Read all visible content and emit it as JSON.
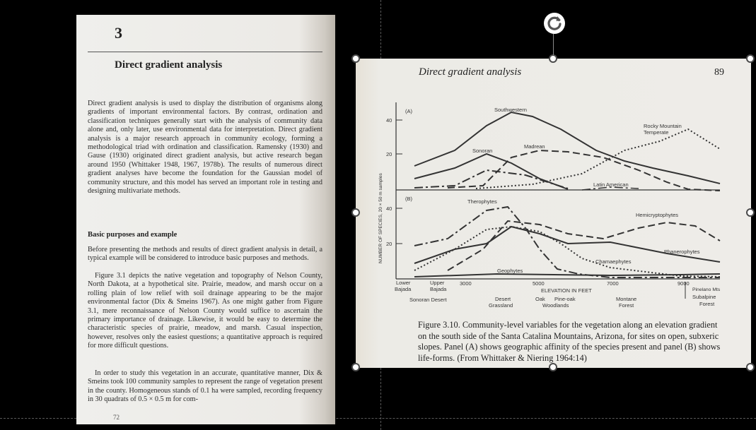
{
  "left_page": {
    "chapter_number": "3",
    "chapter_title": "Direct gradient analysis",
    "intro_paragraph": "Direct gradient analysis is used to display the distribution of organisms along gradients of important environmental factors. By contrast, ordination and classification techniques generally start with the analysis of community data alone and, only later, use environmental data for interpretation. Direct gradient analysis is a major research approach in community ecology, forming a methodological triad with ordination and classification. Ramensky (1930) and Gause (1930) originated direct gradient analysis, but active research began around 1950 (Whittaker 1948, 1967, 1978b). The results of numerous direct gradient analyses have become the foundation for the Gaussian model of community structure, and this model has served an important role in testing and designing multivariate methods.",
    "section_heading": "Basic purposes and example",
    "para_2": "Before presenting the methods and results of direct gradient analysis in detail, a typical example will be considered to introduce basic purposes and methods.",
    "para_3": "Figure 3.1 depicts the native vegetation and topography of Nelson County, North Dakota, at a hypothetical site. Prairie, meadow, and marsh occur on a rolling plain of low relief with soil drainage appearing to be the major environmental factor (Dix & Smeins 1967). As one might gather from Figure 3.1, mere reconnaissance of Nelson County would suffice to ascertain the primary importance of drainage. Likewise, it would be easy to determine the characteristic species of prairie, meadow, and marsh. Casual inspection, however, resolves only the easiest questions; a quantitative approach is required for more difficult questions.",
    "para_4": "In order to study this vegetation in an accurate, quantitative manner, Dix & Smeins took 100 community samples to represent the range of vegetation present in the county. Homogeneous stands of 0.1 ha were sampled, recording frequency in 30 quadrats of 0.5 × 0.5 m for com-",
    "folio": "72"
  },
  "right_page": {
    "running_head": "Direct gradient analysis",
    "page_number": "89",
    "caption": "Figure 3.10. Community-level variables for the vegetation along an elevation gradient on the south side of the Santa Catalina Mountains, Arizona, for sites on open, subxeric slopes. Panel (A) shows geographic affinity of the species present and panel (B) shows life-forms. (From Whittaker & Niering 1964:14)",
    "figure": {
      "y_axis_label": "NUMBER OF SPECIES, 20 × 50 m samples",
      "panel_a_label": "(A)",
      "panel_b_label": "(B)",
      "a_ticks": [
        "40",
        "20"
      ],
      "b_ticks": [
        "40",
        "20"
      ],
      "a_series_labels": [
        "Southwestern",
        "Sonoran",
        "Madrean",
        "Rocky Mountain",
        "Temperate",
        "Latin American"
      ],
      "b_series_labels": [
        "Therophytes",
        "Hemicryptophytes",
        "Phanerophytes",
        "Chamaephytes",
        "Geophytes"
      ],
      "x_ticks": [
        "3000",
        "5000",
        "7000",
        "9000"
      ],
      "x_axis_title": "ELEVATION IN FEET",
      "zone_labels_top": [
        "Lower",
        "Bajada",
        "Upper",
        "Bajada"
      ],
      "vegetation_labels": [
        "Sonoran Desert",
        "Desert",
        "Grassland",
        "Oak",
        "Woodlands",
        "Pine-oak",
        "Montane",
        "Forest",
        "Pinelano Mts",
        "Subalpine",
        "Forest"
      ]
    }
  },
  "toolbar": {
    "rotate_icon_name": "rotate-icon"
  }
}
